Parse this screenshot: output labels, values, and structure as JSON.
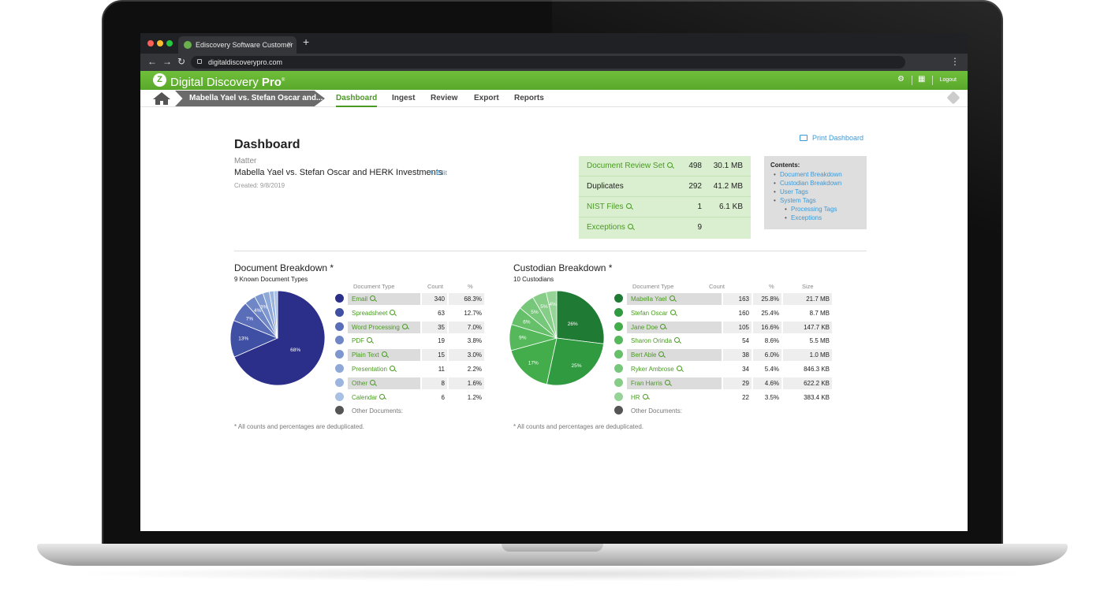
{
  "browser": {
    "tab_title": "Ediscovery Software Customer",
    "tab_close": "×",
    "new_tab": "+",
    "url": "digitaldiscoverypro.com",
    "back": "←",
    "forward": "→",
    "reload": "↻",
    "menu": "⋮"
  },
  "app": {
    "logo_letter": "Z",
    "brand_main": "Digital Discovery",
    "brand_pro": "Pro",
    "brand_reg": "®",
    "logout": "Logout",
    "settings_icon": "⚙",
    "apps_icon": "▦",
    "brand_color": "#5aa82b"
  },
  "nav": {
    "breadcrumb": "Mabella Yael vs. Stefan Oscar and...",
    "tabs": [
      "Dashboard",
      "Ingest",
      "Review",
      "Export",
      "Reports"
    ],
    "active_tab": "Dashboard"
  },
  "page": {
    "title": "Dashboard",
    "matter_label": "Matter",
    "matter_name": "Mabella Yael vs. Stefan Oscar and HERK Investments",
    "edit": "Edit",
    "created": "Created: 9/8/2019",
    "print": "Print Dashboard"
  },
  "stats": [
    {
      "label": "Document Review Set",
      "count": "498",
      "size": "30.1 MB",
      "link": true
    },
    {
      "label": "Duplicates",
      "count": "292",
      "size": "41.2 MB",
      "link": false
    },
    {
      "label": "NIST Files",
      "count": "1",
      "size": "6.1 KB",
      "link": true
    },
    {
      "label": "Exceptions",
      "count": "9",
      "size": "",
      "link": true
    }
  ],
  "contents": {
    "title": "Contents:",
    "items": [
      "Document Breakdown",
      "Custodian Breakdown",
      "User Tags",
      "System Tags"
    ],
    "sub_items": [
      "Processing Tags",
      "Exceptions"
    ]
  },
  "doc_breakdown": {
    "title": "Document Breakdown *",
    "subtitle": "9 Known Document Types",
    "col_type": "Document Type",
    "col_count": "Count",
    "col_pct": "%",
    "rows": [
      {
        "name": "Email",
        "count": "340",
        "pct": "68.3%",
        "color": "#2b2f8a"
      },
      {
        "name": "Spreadsheet",
        "count": "63",
        "pct": "12.7%",
        "color": "#3f4fa3"
      },
      {
        "name": "Word Processing",
        "count": "35",
        "pct": "7.0%",
        "color": "#5a6db8"
      },
      {
        "name": "PDF",
        "count": "19",
        "pct": "3.8%",
        "color": "#6f87c6"
      },
      {
        "name": "Plain Text",
        "count": "15",
        "pct": "3.0%",
        "color": "#7f97cf"
      },
      {
        "name": "Presentation",
        "count": "11",
        "pct": "2.2%",
        "color": "#8ea8d8"
      },
      {
        "name": "Other",
        "count": "8",
        "pct": "1.6%",
        "color": "#9bb5df"
      },
      {
        "name": "Calendar",
        "count": "6",
        "pct": "1.2%",
        "color": "#a8c0e4"
      }
    ],
    "other_label": "Other Documents:",
    "other_color": "#555555",
    "footnote": "* All counts and percentages are deduplicated.",
    "pie_labels": [
      "68%",
      "13%",
      "7%",
      "4%",
      "3%"
    ]
  },
  "cust_breakdown": {
    "title": "Custodian Breakdown *",
    "subtitle": "10 Custodians",
    "col_type": "Document Type",
    "col_count": "Count",
    "col_pct": "%",
    "col_size": "Size",
    "rows": [
      {
        "name": "Mabella Yael",
        "count": "163",
        "pct": "25.8%",
        "size": "21.7 MB",
        "color": "#1f7a34"
      },
      {
        "name": "Stefan Oscar",
        "count": "160",
        "pct": "25.4%",
        "size": "8.7 MB",
        "color": "#2f9a3f"
      },
      {
        "name": "Jane Doe",
        "count": "105",
        "pct": "16.6%",
        "size": "147.7 KB",
        "color": "#43ad4b"
      },
      {
        "name": "Sharon Orinda",
        "count": "54",
        "pct": "8.6%",
        "size": "5.5 MB",
        "color": "#55b85a"
      },
      {
        "name": "Bert Able",
        "count": "38",
        "pct": "6.0%",
        "size": "1.0 MB",
        "color": "#66c06a"
      },
      {
        "name": "Ryker Ambrose",
        "count": "34",
        "pct": "5.4%",
        "size": "846.3 KB",
        "color": "#77c77a"
      },
      {
        "name": "Fran Harris",
        "count": "29",
        "pct": "4.6%",
        "size": "622.2 KB",
        "color": "#86cd88"
      },
      {
        "name": "HR",
        "count": "22",
        "pct": "3.5%",
        "size": "383.4 KB",
        "color": "#95d496"
      }
    ],
    "other_label": "Other Documents:",
    "other_color": "#555555",
    "footnote": "* All counts and percentages are deduplicated.",
    "pie_labels": [
      "26%",
      "25%",
      "17%",
      "9%",
      "6%",
      "5%",
      "5%",
      "4%"
    ]
  }
}
